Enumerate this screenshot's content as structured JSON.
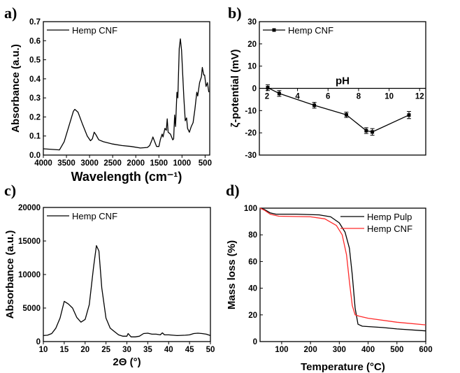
{
  "chart_data": [
    {
      "panel": "a)",
      "type": "line",
      "xlabel": "Wavelength (cm⁻¹)",
      "ylabel": "Absorbance (a.u.)",
      "xlim": [
        4000,
        400
      ],
      "ylim": [
        0,
        0.7
      ],
      "xticks": [
        4000,
        3500,
        3000,
        2500,
        2000,
        1500,
        1000,
        500
      ],
      "yticks": [
        0.0,
        0.1,
        0.2,
        0.3,
        0.4,
        0.5,
        0.6,
        0.7
      ],
      "ytick_decimals": 1,
      "legend": "top-left",
      "series": [
        {
          "name": "Hemp CNF",
          "color": "#000000",
          "x": [
            4000,
            3700,
            3650,
            3550,
            3450,
            3350,
            3320,
            3250,
            3150,
            3050,
            2980,
            2940,
            2900,
            2870,
            2800,
            2700,
            2500,
            2300,
            2100,
            1900,
            1750,
            1700,
            1650,
            1630,
            1590,
            1550,
            1500,
            1470,
            1430,
            1410,
            1370,
            1340,
            1320,
            1300,
            1250,
            1200,
            1180,
            1160,
            1140,
            1110,
            1090,
            1060,
            1035,
            1010,
            990,
            960,
            930,
            900,
            880,
            840,
            800,
            760,
            720,
            680,
            660,
            620,
            580,
            560,
            530,
            510,
            480,
            450,
            420
          ],
          "y": [
            0.033,
            0.028,
            0.027,
            0.07,
            0.15,
            0.23,
            0.24,
            0.225,
            0.16,
            0.1,
            0.075,
            0.085,
            0.12,
            0.11,
            0.08,
            0.07,
            0.058,
            0.05,
            0.045,
            0.037,
            0.04,
            0.05,
            0.08,
            0.095,
            0.07,
            0.045,
            0.045,
            0.08,
            0.11,
            0.095,
            0.14,
            0.13,
            0.19,
            0.12,
            0.11,
            0.08,
            0.085,
            0.21,
            0.15,
            0.33,
            0.3,
            0.56,
            0.61,
            0.55,
            0.45,
            0.3,
            0.18,
            0.195,
            0.14,
            0.12,
            0.15,
            0.17,
            0.24,
            0.33,
            0.31,
            0.38,
            0.41,
            0.46,
            0.42,
            0.42,
            0.36,
            0.38,
            0.33
          ]
        }
      ]
    },
    {
      "panel": "b)",
      "type": "line",
      "xlabel": "pH",
      "ylabel": "ζ-potential (mV)",
      "xlim": [
        1.5,
        12.4
      ],
      "ylim": [
        -30,
        30
      ],
      "xticks": [
        2,
        4,
        6,
        8,
        10,
        12
      ],
      "yticks": [
        -30,
        -20,
        -10,
        0,
        10,
        20,
        30
      ],
      "ytick_decimals": 0,
      "legend": "top-left",
      "series": [
        {
          "name": "Hemp CNF",
          "color": "#000000",
          "markers": "square",
          "x": [
            2.05,
            2.8,
            5.1,
            7.2,
            8.5,
            8.9,
            11.3
          ],
          "y": [
            0.3,
            -2.3,
            -7.6,
            -11.9,
            -19.0,
            -19.6,
            -12.0
          ],
          "yerr": [
            1.3,
            1.3,
            1.3,
            1.2,
            1.3,
            1.5,
            1.6
          ]
        }
      ]
    },
    {
      "panel": "c)",
      "type": "line",
      "xlabel": "2Θ (°)",
      "ylabel": "Absorbance (a.u.)",
      "xlim": [
        10,
        50
      ],
      "ylim": [
        0,
        20000
      ],
      "xticks": [
        10,
        15,
        20,
        25,
        30,
        35,
        40,
        45,
        50
      ],
      "yticks": [
        0,
        5000,
        10000,
        15000,
        20000
      ],
      "ytick_decimals": 0,
      "legend": "top-left",
      "series": [
        {
          "name": "Hemp CNF",
          "color": "#000000",
          "x": [
            10,
            11,
            12,
            13,
            14,
            15,
            16,
            17,
            18,
            19,
            20,
            21,
            22,
            22.7,
            23.3,
            24,
            25,
            26,
            27,
            28,
            29,
            30,
            30.3,
            31,
            32,
            33,
            34,
            35,
            36,
            37,
            38,
            38.5,
            39,
            40,
            42,
            44,
            45,
            46,
            47,
            48,
            49,
            50
          ],
          "y": [
            900,
            950,
            1200,
            2000,
            3500,
            6000,
            5600,
            5000,
            3600,
            2900,
            3300,
            5500,
            11000,
            14300,
            13500,
            8000,
            3500,
            2000,
            1500,
            1000,
            800,
            800,
            1200,
            700,
            700,
            800,
            1200,
            1250,
            1100,
            1100,
            1000,
            1300,
            1000,
            1000,
            900,
            950,
            1000,
            1200,
            1250,
            1200,
            1100,
            900
          ]
        }
      ]
    },
    {
      "panel": "d)",
      "type": "line",
      "xlabel": "Temperature (°C)",
      "ylabel": "Mass loss (%)",
      "xlim": [
        25,
        600
      ],
      "ylim": [
        0,
        100
      ],
      "xticks": [
        100,
        200,
        300,
        400,
        500,
        600
      ],
      "yticks": [
        0,
        20,
        40,
        60,
        80,
        100
      ],
      "ytick_decimals": 0,
      "legend": "top-right",
      "series": [
        {
          "name": "Hemp Pulp",
          "color": "#000000",
          "x": [
            25,
            40,
            60,
            80,
            150,
            230,
            270,
            300,
            320,
            335,
            345,
            355,
            365,
            380,
            450,
            500,
            600
          ],
          "y": [
            100,
            99,
            96.5,
            95.5,
            95.5,
            95,
            93.5,
            89,
            82,
            70,
            50,
            25,
            13,
            11.5,
            10.5,
            9.5,
            8
          ]
        },
        {
          "name": "Hemp CNF",
          "color": "#ff2a2a",
          "x": [
            25,
            40,
            60,
            90,
            200,
            250,
            290,
            310,
            325,
            335,
            345,
            355,
            370,
            400,
            500,
            600
          ],
          "y": [
            100,
            98.5,
            95.5,
            94,
            93.5,
            92,
            87,
            80,
            65,
            45,
            27,
            20,
            19,
            17.5,
            14.5,
            12.5
          ]
        }
      ]
    }
  ]
}
